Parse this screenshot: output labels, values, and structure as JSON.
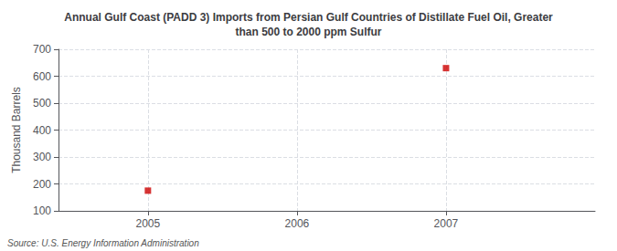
{
  "chart_data": {
    "type": "scatter",
    "title": "Annual Gulf Coast (PADD 3) Imports from Persian Gulf Countries of Distillate Fuel Oil, Greater\nthan 500 to 2000 ppm Sulfur",
    "ylabel": "Thousand Barrels",
    "source": "Source: U.S. Energy Information Administration",
    "x": [
      2005,
      2007
    ],
    "values": [
      175,
      630
    ],
    "color": "#cc0000",
    "marker": "square",
    "xlim": [
      2004.4,
      2008.0
    ],
    "ylim": [
      100,
      700
    ],
    "xticks": [
      2005,
      2006,
      2007
    ],
    "yticks": [
      100,
      200,
      300,
      400,
      500,
      600,
      700
    ],
    "grid": true
  }
}
